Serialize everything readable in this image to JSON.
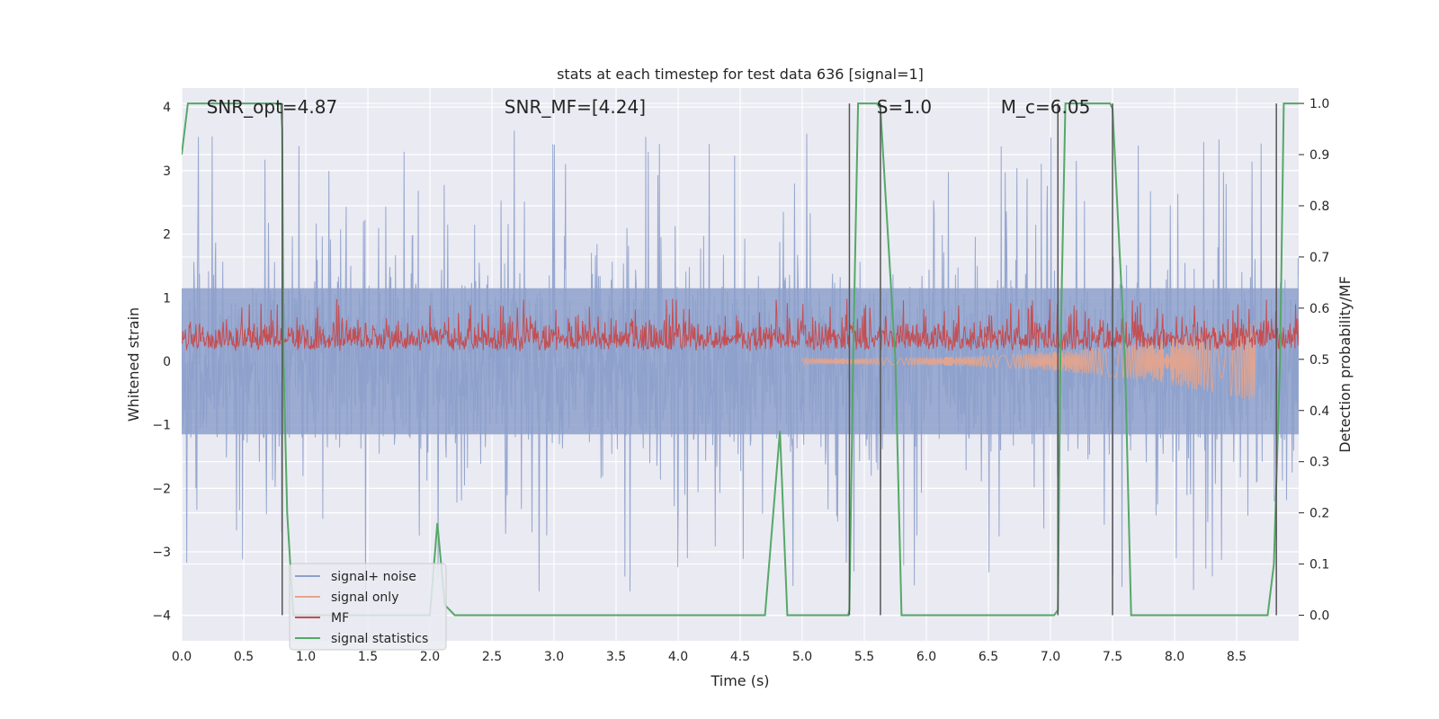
{
  "chart_data": {
    "type": "line",
    "title": "stats at each timestep for test data 636 [signal=1]",
    "xlabel": "Time (s)",
    "ylabel": "Whitened strain",
    "ylabel_right": "Detection probability/MF",
    "xlim": [
      0.0,
      9.0
    ],
    "ylim": [
      -4.4,
      4.3
    ],
    "ylim_right": [
      -0.05,
      1.03
    ],
    "x_ticks": [
      0.0,
      0.5,
      1.0,
      1.5,
      2.0,
      2.5,
      3.0,
      3.5,
      4.0,
      4.5,
      5.0,
      5.5,
      6.0,
      6.5,
      7.0,
      7.5,
      8.0,
      8.5
    ],
    "x_tick_labels": [
      "0.0",
      "0.5",
      "1.0",
      "1.5",
      "2.0",
      "2.5",
      "3.0",
      "3.5",
      "4.0",
      "4.5",
      "5.0",
      "5.5",
      "6.0",
      "6.5",
      "7.0",
      "7.5",
      "8.0",
      "8.5"
    ],
    "y_ticks": [
      -4,
      -3,
      -2,
      -1,
      0,
      1,
      2,
      3,
      4
    ],
    "y_tick_labels": [
      "−4",
      "−3",
      "−2",
      "−1",
      "0",
      "1",
      "2",
      "3",
      "4"
    ],
    "y2_ticks": [
      0.0,
      0.1,
      0.2,
      0.3,
      0.4,
      0.5,
      0.6,
      0.7,
      0.8,
      0.9,
      1.0
    ],
    "y2_tick_labels": [
      "0.0",
      "0.1",
      "0.2",
      "0.3",
      "0.4",
      "0.5",
      "0.6",
      "0.7",
      "0.8",
      "0.9",
      "1.0"
    ],
    "grid": true,
    "legend_position": "lower-left",
    "annotations": [
      {
        "text": "SNR_opt=4.87",
        "x": 0.2,
        "y": 4.0
      },
      {
        "text": "SNR_MF=[4.24]",
        "x": 2.6,
        "y": 4.0
      },
      {
        "text": "S=1.0",
        "x": 5.6,
        "y": 4.0
      },
      {
        "text": "M_c=6.05",
        "x": 6.6,
        "y": 4.0
      }
    ],
    "vlines_right_axis": [
      {
        "x": 0.81,
        "y0": 0.0,
        "y1": 1.0
      },
      {
        "x": 5.38,
        "y0": 0.0,
        "y1": 1.0
      },
      {
        "x": 5.63,
        "y0": 0.0,
        "y1": 1.0
      },
      {
        "x": 7.06,
        "y0": 0.0,
        "y1": 1.0
      },
      {
        "x": 7.5,
        "y0": 0.0,
        "y1": 1.0
      },
      {
        "x": 8.82,
        "y0": 0.0,
        "y1": 1.0
      }
    ],
    "series": [
      {
        "name": "signal+ noise",
        "color": "#8da0cb",
        "style": "noise",
        "axis": "left",
        "x_range": [
          0.0,
          9.0
        ],
        "envelope_typical": 1.6,
        "envelope_peak": 3.7
      },
      {
        "name": "signal only",
        "color": "#e8a48a",
        "style": "chirp",
        "axis": "left",
        "x_start": 5.0,
        "x_end": 8.65,
        "amplitude_end": 0.6
      },
      {
        "name": "MF",
        "color": "#c44e52",
        "style": "mf",
        "axis": "left",
        "x_range": [
          0.0,
          9.0
        ],
        "baseline": 0.15,
        "band": 0.55
      },
      {
        "name": "signal statistics",
        "color": "#55a868",
        "style": "line",
        "axis": "right",
        "x": [
          0.0,
          0.05,
          0.8,
          0.81,
          0.82,
          0.85,
          0.9,
          2.0,
          2.06,
          2.12,
          2.2,
          4.7,
          4.82,
          4.88,
          5.37,
          5.38,
          5.41,
          5.45,
          5.6,
          5.63,
          5.75,
          5.8,
          7.03,
          7.06,
          7.08,
          7.12,
          7.48,
          7.5,
          7.6,
          7.65,
          8.75,
          8.8,
          8.85,
          8.88,
          9.0
        ],
        "y": [
          0.9,
          1.0,
          1.0,
          0.95,
          0.5,
          0.2,
          0.0,
          0.0,
          0.18,
          0.02,
          0.0,
          0.0,
          0.36,
          0.0,
          0.0,
          0.01,
          0.5,
          1.0,
          1.0,
          0.99,
          0.5,
          0.0,
          0.0,
          0.01,
          0.5,
          1.0,
          1.0,
          0.99,
          0.5,
          0.0,
          0.0,
          0.1,
          0.5,
          1.0,
          1.0
        ]
      }
    ]
  }
}
